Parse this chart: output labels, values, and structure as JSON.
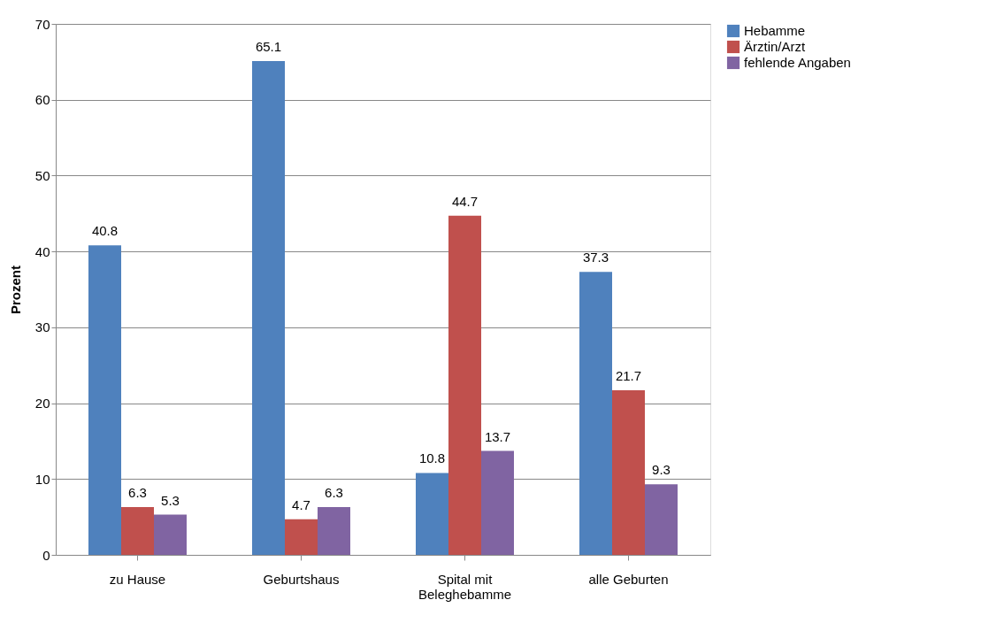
{
  "chart_data": {
    "type": "bar",
    "ylabel": "Prozent",
    "categories": [
      "zu Hause",
      "Geburtshaus",
      "Spital mit Beleghebamme",
      "alle Geburten"
    ],
    "series": [
      {
        "name": "Hebamme",
        "color": "#4f81bd",
        "values": [
          40.8,
          65.1,
          10.8,
          37.3
        ]
      },
      {
        "name": "Ärztin/Arzt",
        "color": "#c0504d",
        "values": [
          6.3,
          4.7,
          44.7,
          21.7
        ]
      },
      {
        "name": "fehlende Angaben",
        "color": "#8064a2",
        "values": [
          5.3,
          6.3,
          13.7,
          9.3
        ]
      }
    ],
    "ylim": [
      0,
      70
    ],
    "yticks": [
      0,
      10,
      20,
      30,
      40,
      50,
      60,
      70
    ],
    "grid": "y",
    "legend": "right",
    "data_labels": true
  }
}
